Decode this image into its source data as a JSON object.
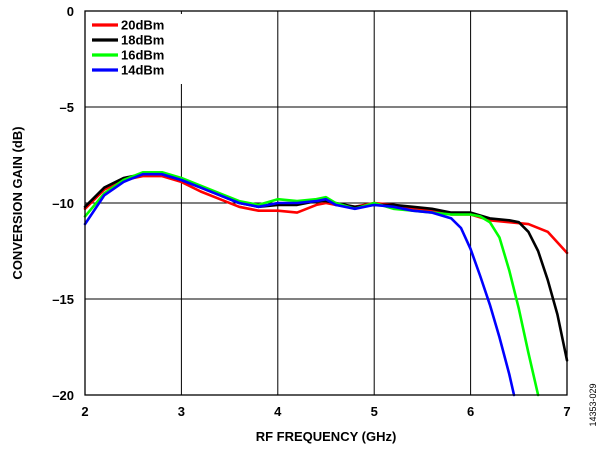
{
  "chart_data": {
    "type": "line",
    "title": "",
    "xlabel": "RF FREQUENCY (GHz)",
    "ylabel": "CONVERSION GAIN (dB)",
    "xlim": [
      2,
      7
    ],
    "ylim": [
      -20,
      0
    ],
    "x_ticks": [
      2,
      3,
      4,
      5,
      6,
      7
    ],
    "y_ticks": [
      0,
      -5,
      -10,
      -15,
      -20
    ],
    "x_tick_labels": [
      "2",
      "3",
      "4",
      "5",
      "6",
      "7"
    ],
    "y_tick_labels": [
      "0",
      "–5",
      "–10",
      "–15",
      "–20"
    ],
    "grid": true,
    "legend_position": "top-left",
    "figure_id": "14353-029",
    "series": [
      {
        "name": "20dBm",
        "color": "#ff0000",
        "x": [
          2.0,
          2.2,
          2.4,
          2.6,
          2.8,
          3.0,
          3.2,
          3.4,
          3.6,
          3.8,
          4.0,
          4.2,
          4.4,
          4.5,
          4.6,
          4.8,
          5.0,
          5.2,
          5.4,
          5.6,
          5.8,
          6.0,
          6.2,
          6.4,
          6.6,
          6.8,
          7.0
        ],
        "y": [
          -10.3,
          -9.3,
          -8.8,
          -8.6,
          -8.6,
          -8.9,
          -9.4,
          -9.8,
          -10.2,
          -10.4,
          -10.4,
          -10.5,
          -10.1,
          -10.0,
          -10.1,
          -10.2,
          -10.0,
          -10.1,
          -10.3,
          -10.4,
          -10.6,
          -10.6,
          -10.9,
          -11.0,
          -11.1,
          -11.5,
          -12.6
        ]
      },
      {
        "name": "18dBm",
        "color": "#000000",
        "x": [
          2.0,
          2.2,
          2.4,
          2.6,
          2.8,
          3.0,
          3.2,
          3.4,
          3.6,
          3.8,
          4.0,
          4.2,
          4.4,
          4.5,
          4.6,
          4.8,
          5.0,
          5.2,
          5.4,
          5.6,
          5.8,
          6.0,
          6.2,
          6.4,
          6.5,
          6.6,
          6.7,
          6.8,
          6.9,
          7.0
        ],
        "y": [
          -10.2,
          -9.2,
          -8.7,
          -8.5,
          -8.5,
          -8.8,
          -9.2,
          -9.6,
          -10.0,
          -10.2,
          -10.1,
          -10.1,
          -9.9,
          -9.9,
          -10.0,
          -10.2,
          -10.1,
          -10.1,
          -10.2,
          -10.3,
          -10.5,
          -10.5,
          -10.8,
          -10.9,
          -11.0,
          -11.5,
          -12.5,
          -14.0,
          -15.8,
          -18.2
        ]
      },
      {
        "name": "16dBm",
        "color": "#00ff00",
        "x": [
          2.0,
          2.2,
          2.4,
          2.6,
          2.8,
          3.0,
          3.2,
          3.4,
          3.6,
          3.8,
          4.0,
          4.2,
          4.4,
          4.5,
          4.6,
          4.8,
          5.0,
          5.2,
          5.4,
          5.6,
          5.8,
          6.0,
          6.1,
          6.2,
          6.3,
          6.4,
          6.5,
          6.6,
          6.7
        ],
        "y": [
          -10.7,
          -9.5,
          -8.8,
          -8.4,
          -8.4,
          -8.7,
          -9.1,
          -9.5,
          -9.9,
          -10.1,
          -9.8,
          -9.9,
          -9.8,
          -9.7,
          -10.0,
          -10.3,
          -10.0,
          -10.3,
          -10.4,
          -10.5,
          -10.6,
          -10.6,
          -10.7,
          -11.0,
          -11.8,
          -13.5,
          -15.5,
          -17.8,
          -20.0
        ]
      },
      {
        "name": "14dBm",
        "color": "#0000ff",
        "x": [
          2.0,
          2.2,
          2.4,
          2.6,
          2.8,
          3.0,
          3.2,
          3.4,
          3.6,
          3.8,
          4.0,
          4.2,
          4.4,
          4.5,
          4.6,
          4.8,
          5.0,
          5.2,
          5.4,
          5.6,
          5.8,
          5.9,
          6.0,
          6.1,
          6.2,
          6.3,
          6.4,
          6.45
        ],
        "y": [
          -11.1,
          -9.6,
          -8.9,
          -8.5,
          -8.5,
          -8.8,
          -9.2,
          -9.6,
          -10.0,
          -10.2,
          -10.0,
          -10.0,
          -9.9,
          -9.8,
          -10.1,
          -10.3,
          -10.1,
          -10.2,
          -10.4,
          -10.5,
          -10.8,
          -11.3,
          -12.4,
          -13.8,
          -15.3,
          -17.0,
          -18.9,
          -20.0
        ]
      }
    ]
  }
}
